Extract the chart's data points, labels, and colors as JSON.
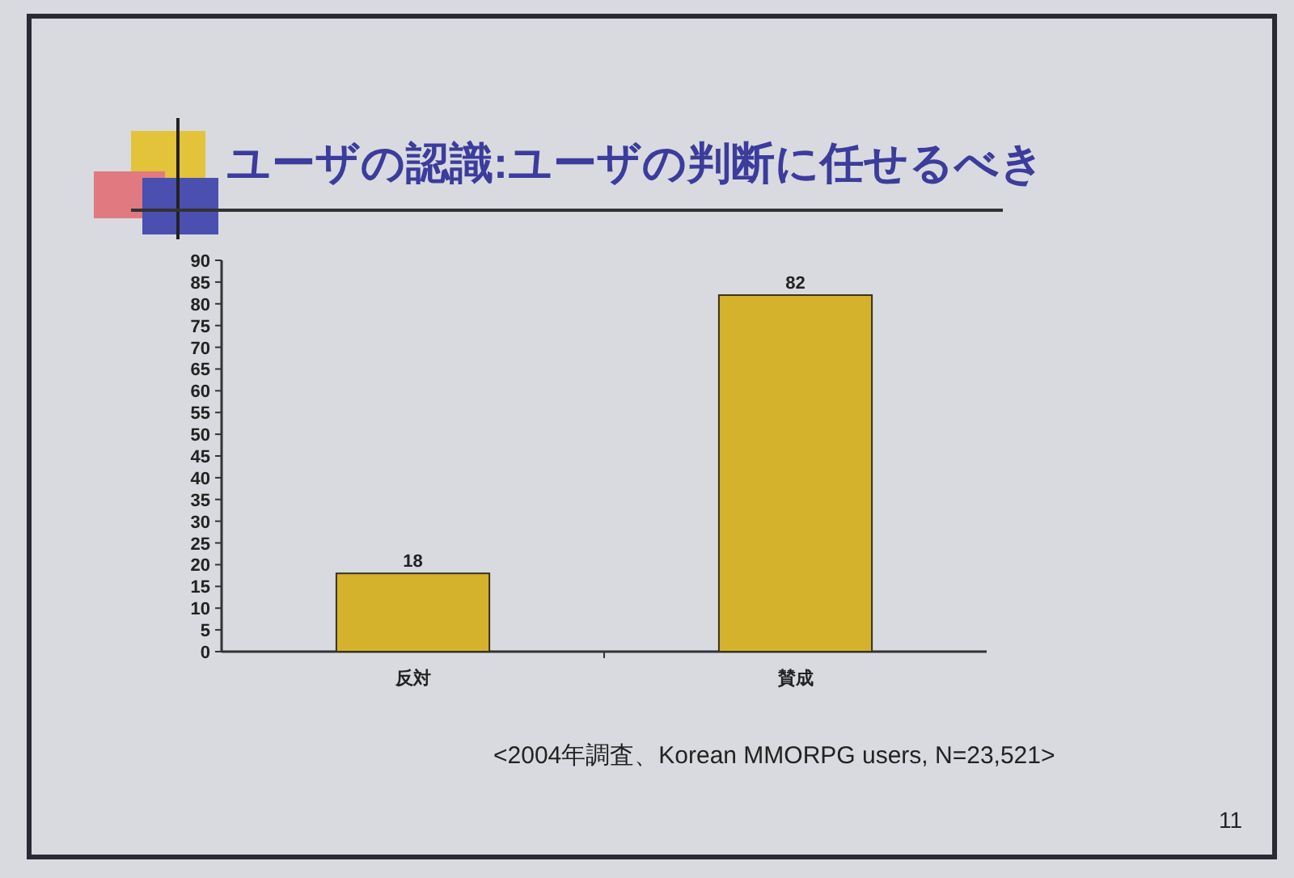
{
  "chart_data": {
    "type": "bar",
    "title": "ユーザの認識:ユーザの判断に任せるべき",
    "categories": [
      "反対",
      "賛成"
    ],
    "values": [
      18,
      82
    ],
    "color": "#d4b22c",
    "ylim": [
      0,
      90
    ],
    "yticks": [
      0,
      5,
      10,
      15,
      20,
      25,
      30,
      35,
      40,
      45,
      50,
      55,
      60,
      65,
      70,
      75,
      80,
      85,
      90
    ],
    "data_labels": true,
    "annotations": [
      "<2004年調査、Korean MMORPG users, N=23,521>",
      "11"
    ]
  }
}
